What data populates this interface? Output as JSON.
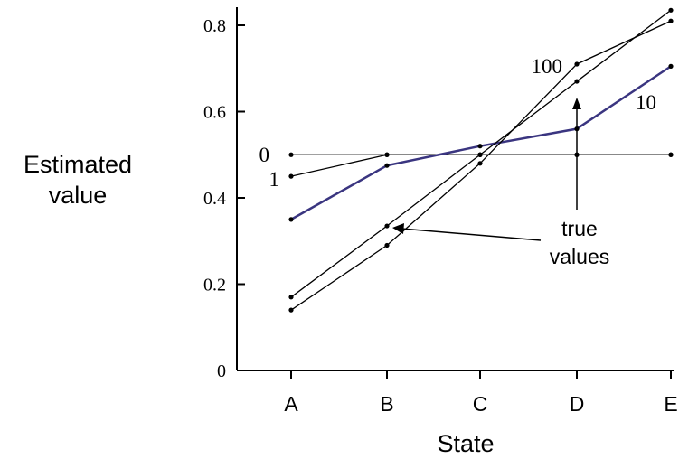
{
  "chart_data": {
    "type": "line",
    "title": "",
    "xlabel": "State",
    "ylabel_lines": [
      "Estimated",
      "value"
    ],
    "categories": [
      "A",
      "B",
      "C",
      "D",
      "E"
    ],
    "ylim": [
      0,
      0.8
    ],
    "yticks": [
      "0",
      "0.2",
      "0.4",
      "0.6",
      "0.8"
    ],
    "ytick_values": [
      0,
      0.2,
      0.4,
      0.6,
      0.8
    ],
    "grid": false,
    "series": [
      {
        "name": "0",
        "values": [
          0.5,
          0.5,
          0.5,
          0.5,
          0.5
        ],
        "color": "#000000"
      },
      {
        "name": "1",
        "values": [
          0.45,
          0.5,
          0.5,
          0.5,
          0.5
        ],
        "color": "#000000"
      },
      {
        "name": "10",
        "values": [
          0.35,
          0.475,
          0.52,
          0.56,
          0.705
        ],
        "color": "#3a3580"
      },
      {
        "name": "100",
        "values": [
          0.14,
          0.29,
          0.48,
          0.71,
          0.81
        ],
        "color": "#000000"
      },
      {
        "name": "",
        "values": [
          0.17,
          0.335,
          0.5,
          0.67,
          0.835
        ],
        "color": "#000000"
      }
    ],
    "annotations": {
      "true_values_lines": [
        "true",
        "values"
      ]
    }
  }
}
